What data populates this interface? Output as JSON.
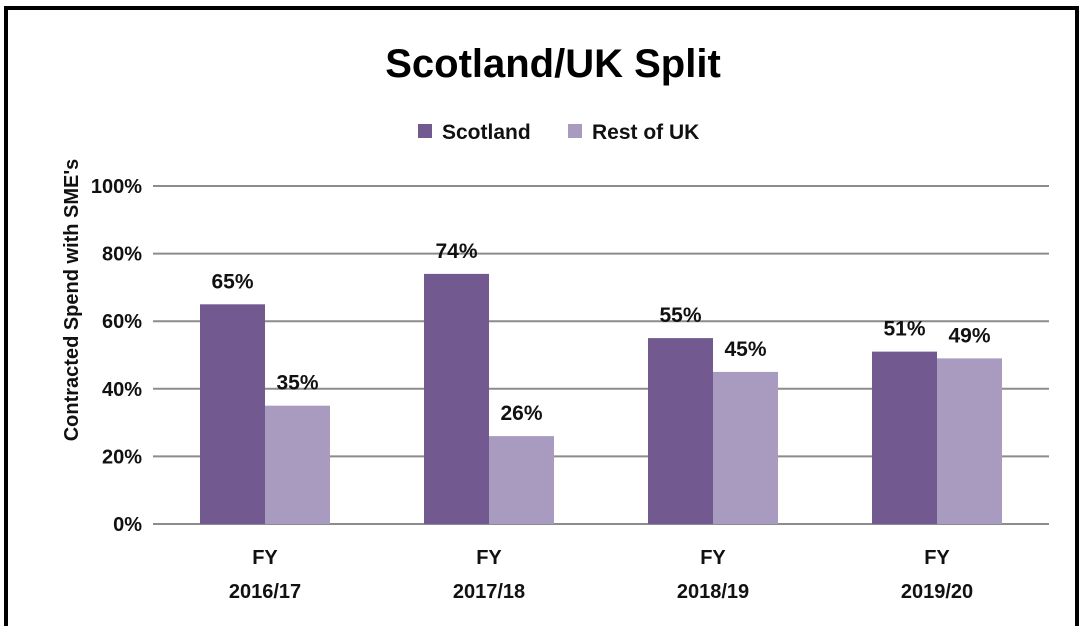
{
  "chart_data": {
    "type": "bar",
    "title": "Scotland/UK Split",
    "ylabel": "Contracted Spend with SME's",
    "xlabel": "",
    "categories": [
      [
        "FY",
        "2016/17"
      ],
      [
        "FY",
        "2017/18"
      ],
      [
        "FY",
        "2018/19"
      ],
      [
        "FY",
        "2019/20"
      ]
    ],
    "series": [
      {
        "name": "Scotland",
        "color": "#725a91",
        "values": [
          65,
          74,
          55,
          51
        ],
        "labels": [
          "65%",
          "74%",
          "55%",
          "51%"
        ]
      },
      {
        "name": "Rest of UK",
        "color": "#a99bc0",
        "values": [
          35,
          26,
          45,
          49
        ],
        "labels": [
          "35%",
          "26%",
          "45%",
          "49%"
        ]
      }
    ],
    "ylim": [
      0,
      100
    ],
    "yticks": [
      0,
      20,
      40,
      60,
      80,
      100
    ],
    "ytick_labels": [
      "0%",
      "20%",
      "40%",
      "60%",
      "80%",
      "100%"
    ],
    "grid": true,
    "legend_position": "top-center"
  }
}
